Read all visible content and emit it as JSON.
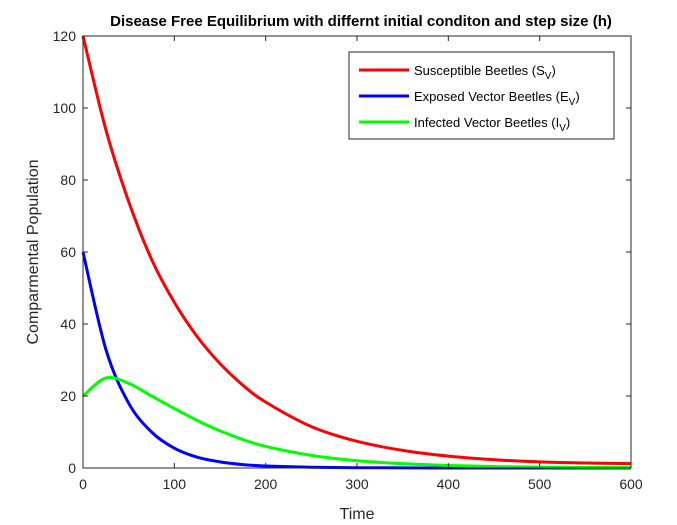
{
  "chart_data": {
    "type": "line",
    "title": "Disease Free Equilibrium with differnt initial conditon and step size (h)",
    "xlabel": "Time",
    "ylabel": "Comparmental Population",
    "xlim": [
      0,
      600
    ],
    "ylim": [
      0,
      120
    ],
    "xticks": [
      0,
      100,
      200,
      300,
      400,
      500,
      600
    ],
    "yticks": [
      0,
      20,
      40,
      60,
      80,
      100,
      120
    ],
    "grid": false,
    "legend_position": "top-right",
    "x": [
      0,
      25,
      50,
      75,
      100,
      125,
      150,
      175,
      200,
      250,
      300,
      350,
      400,
      450,
      500,
      550,
      600
    ],
    "series": [
      {
        "name": "Susceptible Beetles (S",
        "subscript": "V",
        "suffix": ")",
        "color": "#ff0000",
        "values": [
          120,
          94,
          74,
          58,
          46,
          36.5,
          29,
          23,
          18.3,
          11.5,
          7.4,
          4.9,
          3.3,
          2.3,
          1.7,
          1.4,
          1.2
        ]
      },
      {
        "name": "Exposed Vector Beetles (E",
        "subscript": "V",
        "suffix": ")",
        "color": "#0000ff",
        "values": [
          60,
          33,
          18,
          10,
          5.5,
          3,
          1.7,
          0.95,
          0.55,
          0.2,
          0.08,
          0.03,
          0.01,
          0,
          0,
          0,
          0
        ]
      },
      {
        "name": "Infected Vector Beetles (I",
        "subscript": "V",
        "suffix": ")",
        "color": "#00ff00",
        "values": [
          20,
          25,
          23.5,
          20,
          16.5,
          13.2,
          10.3,
          7.9,
          6,
          3.5,
          2,
          1.2,
          0.7,
          0.4,
          0.25,
          0.15,
          0.1
        ]
      }
    ]
  }
}
